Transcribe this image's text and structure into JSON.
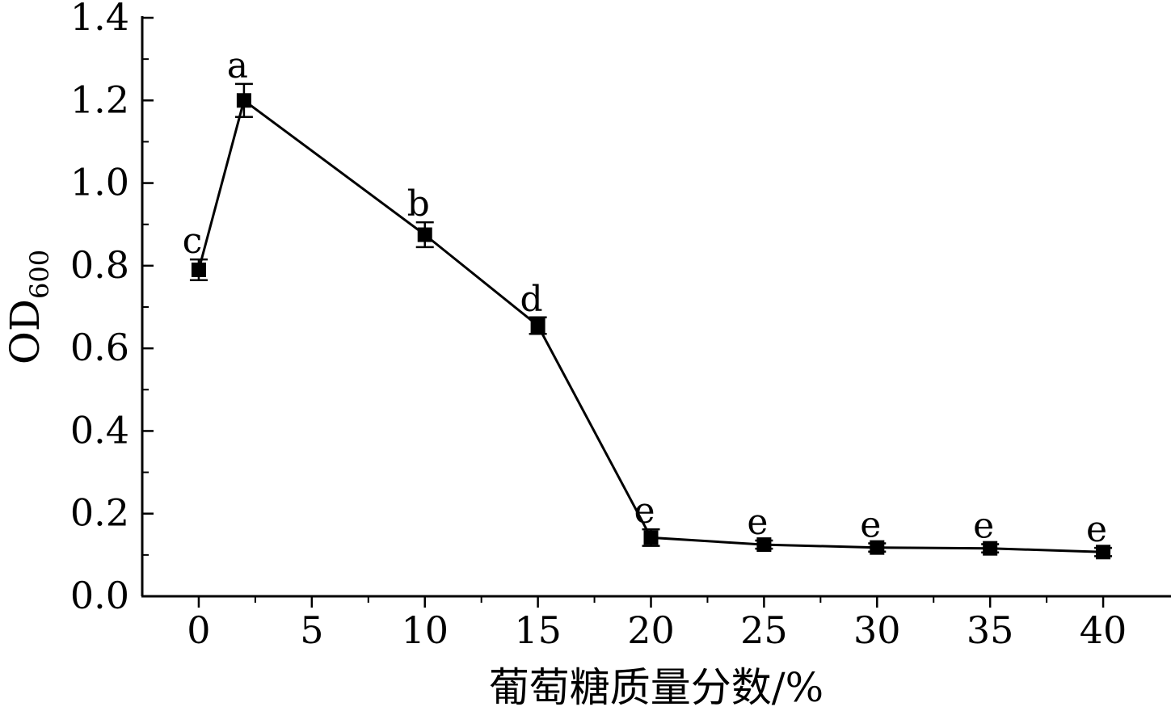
{
  "chart_data": {
    "type": "line",
    "xlabel": "葡萄糖质量分数/%",
    "ylabel_main": "OD",
    "ylabel_sub": "600",
    "xlim": [
      -2.5,
      43
    ],
    "ylim": [
      0,
      1.4
    ],
    "xticks": [
      0,
      5,
      10,
      15,
      20,
      25,
      30,
      35,
      40
    ],
    "yticks": [
      0.0,
      0.2,
      0.4,
      0.6,
      0.8,
      1.0,
      1.2,
      1.4
    ],
    "ytick_labels": [
      "0.0",
      "0.2",
      "0.4",
      "0.6",
      "0.8",
      "1.0",
      "1.2",
      "1.4"
    ],
    "grid": false,
    "series": [
      {
        "x": [
          0,
          2,
          10,
          15,
          20,
          25,
          30,
          35,
          40
        ],
        "y": [
          0.79,
          1.2,
          0.875,
          0.655,
          0.142,
          0.125,
          0.118,
          0.116,
          0.107
        ],
        "err": [
          0.025,
          0.04,
          0.03,
          0.02,
          0.02,
          0.01,
          0.01,
          0.01,
          0.01
        ],
        "labels": [
          "c",
          "a",
          "b",
          "d",
          "e",
          "e",
          "e",
          "e",
          "e"
        ]
      }
    ]
  }
}
